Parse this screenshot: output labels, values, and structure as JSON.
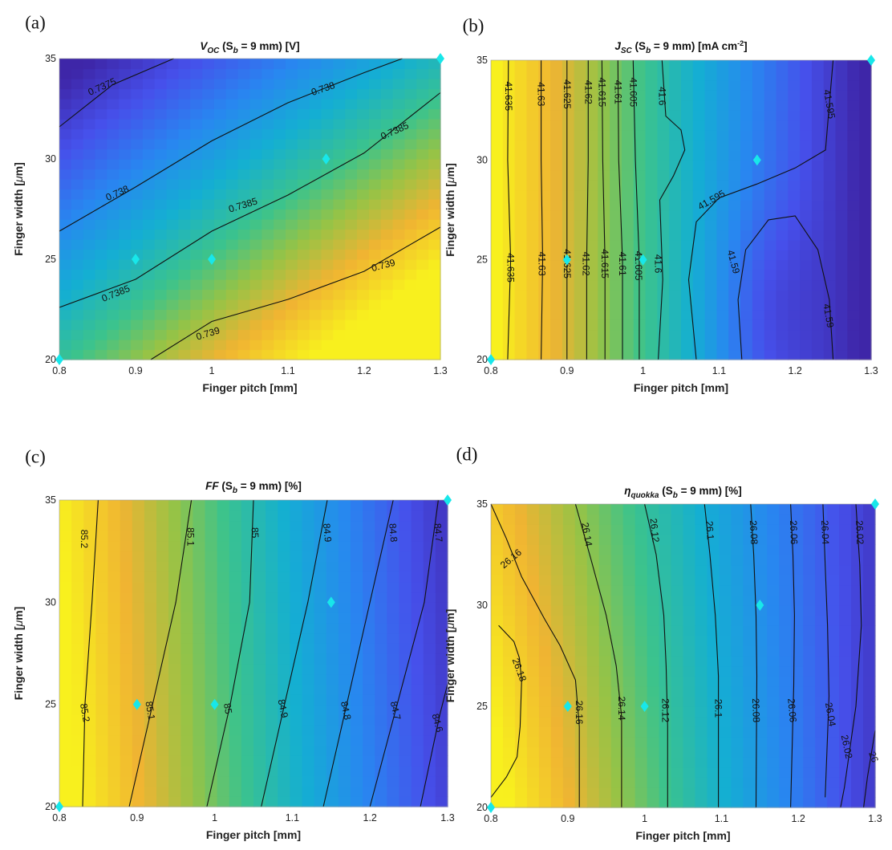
{
  "figure": {
    "panels": [
      {
        "letter": "(a)",
        "title_main": "V",
        "title_sub": "OC",
        "title_rest": " (S",
        "title_sub2": "b",
        "title_end": " = 9 mm) [V]"
      },
      {
        "letter": "(b)",
        "title_main": "J",
        "title_sub": "SC",
        "title_rest": " (S",
        "title_sub2": "b",
        "title_end": " = 9 mm) [mA cm",
        "title_sup": "-2",
        "title_close": "]"
      },
      {
        "letter": "(c)",
        "title_main": "FF",
        "title_sub": "",
        "title_rest": " (S",
        "title_sub2": "b",
        "title_end": " = 9 mm) [%]"
      },
      {
        "letter": "(d)",
        "title_main": "η",
        "title_sub": "quokka",
        "title_rest": " (S",
        "title_sub2": "b",
        "title_end": " = 9 mm) [%]"
      }
    ],
    "xlabel": "Finger pitch [mm]",
    "ylabel_pre": "Finger width [",
    "ylabel_mu": "μ",
    "ylabel_post": "m]",
    "colors": {
      "marker": "#18e7ea",
      "contour": "#111111"
    }
  },
  "chart_data": [
    {
      "type": "heatmap",
      "panel": "a",
      "title": "V_OC (S_b = 9 mm) [V]",
      "xlabel": "Finger pitch [mm]",
      "ylabel": "Finger width [μm]",
      "x_ticks": [
        "0.8",
        "0.9",
        "1",
        "1.1",
        "1.2",
        "1.3"
      ],
      "y_ticks": [
        "20",
        "25",
        "30",
        "35"
      ],
      "xlim": [
        0.8,
        1.3
      ],
      "ylim": [
        20,
        35
      ],
      "contour_levels": [
        "0.7375",
        "0.738",
        "0.7385",
        "0.739"
      ],
      "contour_labels": [
        {
          "text": "0.7375",
          "x": 0.856,
          "y": 33.6,
          "angle": -24
        },
        {
          "text": "0.738",
          "x": 1.146,
          "y": 33.5,
          "angle": -19
        },
        {
          "text": "0.738",
          "x": 0.876,
          "y": 28.3,
          "angle": -24
        },
        {
          "text": "0.7385",
          "x": 1.24,
          "y": 31.4,
          "angle": -24
        },
        {
          "text": "0.7385",
          "x": 1.041,
          "y": 27.7,
          "angle": -17
        },
        {
          "text": "0.7385",
          "x": 0.874,
          "y": 23.3,
          "angle": -22
        },
        {
          "text": "0.739",
          "x": 1.225,
          "y": 24.7,
          "angle": -15
        },
        {
          "text": "0.739",
          "x": 0.995,
          "y": 21.3,
          "angle": -17
        }
      ],
      "markers": [
        {
          "x": 0.8,
          "y": 20
        },
        {
          "x": 0.9,
          "y": 25
        },
        {
          "x": 1.0,
          "y": 25
        },
        {
          "x": 1.15,
          "y": 30
        },
        {
          "x": 1.3,
          "y": 35
        }
      ],
      "color_range": {
        "low": "#3a40d8",
        "high": "#f8f22a"
      }
    },
    {
      "type": "heatmap",
      "panel": "b",
      "title": "J_SC (S_b = 9 mm) [mA cm^-2]",
      "xlabel": "Finger pitch [mm]",
      "ylabel": "Finger width [μm]",
      "x_ticks": [
        "0.8",
        "0.9",
        "1",
        "1.1",
        "1.2",
        "1.3"
      ],
      "y_ticks": [
        "20",
        "25",
        "30",
        "35"
      ],
      "xlim": [
        0.8,
        1.3
      ],
      "ylim": [
        20,
        35
      ],
      "contour_levels": [
        "41.635",
        "41.63",
        "41.625",
        "41.62",
        "41.615",
        "41.61",
        "41.605",
        "41.6",
        "41.595",
        "41.59"
      ],
      "contour_labels": [
        {
          "text": "41.635",
          "x": 0.823,
          "y": 33.2,
          "angle": 90
        },
        {
          "text": "41.635",
          "x": 0.826,
          "y": 24.6,
          "angle": 90
        },
        {
          "text": "41.63",
          "x": 0.866,
          "y": 33.3,
          "angle": 90
        },
        {
          "text": "41.63",
          "x": 0.867,
          "y": 24.8,
          "angle": 90
        },
        {
          "text": "41.625",
          "x": 0.9,
          "y": 33.3,
          "angle": 90
        },
        {
          "text": "41.625",
          "x": 0.9,
          "y": 24.8,
          "angle": 90
        },
        {
          "text": "41.62",
          "x": 0.928,
          "y": 33.4,
          "angle": 90
        },
        {
          "text": "41.62",
          "x": 0.925,
          "y": 24.8,
          "angle": 90
        },
        {
          "text": "41.615",
          "x": 0.946,
          "y": 33.4,
          "angle": 90
        },
        {
          "text": "41.615",
          "x": 0.95,
          "y": 24.8,
          "angle": 90
        },
        {
          "text": "41.61",
          "x": 0.967,
          "y": 33.4,
          "angle": 90
        },
        {
          "text": "41.61",
          "x": 0.973,
          "y": 24.8,
          "angle": 90
        },
        {
          "text": "41.605",
          "x": 0.987,
          "y": 33.4,
          "angle": 90
        },
        {
          "text": "41.605",
          "x": 0.994,
          "y": 24.7,
          "angle": 90
        },
        {
          "text": "41.6",
          "x": 1.025,
          "y": 33.2,
          "angle": 90
        },
        {
          "text": "41.6",
          "x": 1.02,
          "y": 24.8,
          "angle": 90
        },
        {
          "text": "41.595",
          "x": 1.245,
          "y": 32.8,
          "angle": 80
        },
        {
          "text": "41.595",
          "x": 1.09,
          "y": 28.0,
          "angle": -30
        },
        {
          "text": "41.59",
          "x": 1.119,
          "y": 24.9,
          "angle": 75
        },
        {
          "text": "41.59",
          "x": 1.244,
          "y": 22.2,
          "angle": 80
        }
      ],
      "markers": [
        {
          "x": 0.8,
          "y": 20
        },
        {
          "x": 0.9,
          "y": 25
        },
        {
          "x": 1.0,
          "y": 25
        },
        {
          "x": 1.15,
          "y": 30
        },
        {
          "x": 1.3,
          "y": 35
        }
      ],
      "color_range": {
        "low": "#3a36c8",
        "high": "#f8e02a"
      }
    },
    {
      "type": "heatmap",
      "panel": "c",
      "title": "FF (S_b = 9 mm) [%]",
      "xlabel": "Finger pitch [mm]",
      "ylabel": "Finger width [μm]",
      "x_ticks": [
        "0.8",
        "0.9",
        "1",
        "1.1",
        "1.2",
        "1.3"
      ],
      "y_ticks": [
        "20",
        "25",
        "30",
        "35"
      ],
      "xlim": [
        0.8,
        1.3
      ],
      "ylim": [
        20,
        35
      ],
      "contour_levels": [
        "85.2",
        "85.1",
        "85",
        "84.9",
        "84.8",
        "84.7",
        "84.6"
      ],
      "contour_labels": [
        {
          "text": "85.2",
          "x": 0.832,
          "y": 33.1,
          "angle": 90
        },
        {
          "text": "85.2",
          "x": 0.833,
          "y": 24.6,
          "angle": 80
        },
        {
          "text": "85.1",
          "x": 0.969,
          "y": 33.2,
          "angle": 90
        },
        {
          "text": "85.1",
          "x": 0.917,
          "y": 24.7,
          "angle": 80
        },
        {
          "text": "85",
          "x": 1.052,
          "y": 33.4,
          "angle": 87
        },
        {
          "text": "85",
          "x": 1.017,
          "y": 24.8,
          "angle": 80
        },
        {
          "text": "84.9",
          "x": 1.145,
          "y": 33.4,
          "angle": 85
        },
        {
          "text": "84.9",
          "x": 1.088,
          "y": 24.8,
          "angle": 78
        },
        {
          "text": "84.8",
          "x": 1.23,
          "y": 33.4,
          "angle": 85
        },
        {
          "text": "84.8",
          "x": 1.169,
          "y": 24.7,
          "angle": 78
        },
        {
          "text": "84.7",
          "x": 1.288,
          "y": 33.4,
          "angle": 85
        },
        {
          "text": "84.7",
          "x": 1.233,
          "y": 24.7,
          "angle": 78
        },
        {
          "text": "84.6",
          "x": 1.287,
          "y": 24.1,
          "angle": 75
        }
      ],
      "markers": [
        {
          "x": 0.8,
          "y": 20
        },
        {
          "x": 0.9,
          "y": 25
        },
        {
          "x": 1.0,
          "y": 25
        },
        {
          "x": 1.15,
          "y": 30
        },
        {
          "x": 1.3,
          "y": 35
        }
      ],
      "color_range": {
        "low": "#3a36c8",
        "high": "#f8f02a"
      }
    },
    {
      "type": "heatmap",
      "panel": "d",
      "title": "η_quokka (S_b = 9 mm) [%]",
      "xlabel": "Finger pitch [mm]",
      "ylabel": "Finger width [μm]",
      "x_ticks": [
        "0.8",
        "0.9",
        "1",
        "1.1",
        "1.2",
        "1.3"
      ],
      "y_ticks": [
        "20",
        "25",
        "30",
        "35"
      ],
      "xlim": [
        0.8,
        1.3
      ],
      "ylim": [
        20,
        35
      ],
      "contour_levels": [
        "26.18",
        "26.16",
        "26.14",
        "26.12",
        "26.1",
        "26.08",
        "26.06",
        "26.04",
        "26.02",
        "26"
      ],
      "contour_labels": [
        {
          "text": "26.16",
          "x": 0.826,
          "y": 32.3,
          "angle": -40
        },
        {
          "text": "26.18",
          "x": 0.837,
          "y": 26.8,
          "angle": 70
        },
        {
          "text": "26.14",
          "x": 0.925,
          "y": 33.5,
          "angle": 80
        },
        {
          "text": "26.12",
          "x": 1.013,
          "y": 33.7,
          "angle": 84
        },
        {
          "text": "26.1",
          "x": 1.085,
          "y": 33.7,
          "angle": 86
        },
        {
          "text": "26.08",
          "x": 1.142,
          "y": 33.6,
          "angle": 87
        },
        {
          "text": "26.06",
          "x": 1.194,
          "y": 33.6,
          "angle": 88
        },
        {
          "text": "26.04",
          "x": 1.235,
          "y": 33.6,
          "angle": 88
        },
        {
          "text": "26.02",
          "x": 1.28,
          "y": 33.6,
          "angle": 88
        },
        {
          "text": "26.16",
          "x": 0.915,
          "y": 24.7,
          "angle": 90
        },
        {
          "text": "26.14",
          "x": 0.97,
          "y": 24.9,
          "angle": 90
        },
        {
          "text": "26.12",
          "x": 1.027,
          "y": 24.8,
          "angle": 90
        },
        {
          "text": "26.1",
          "x": 1.096,
          "y": 24.9,
          "angle": 90
        },
        {
          "text": "26.08",
          "x": 1.145,
          "y": 24.8,
          "angle": 88
        },
        {
          "text": "26.06",
          "x": 1.192,
          "y": 24.8,
          "angle": 85
        },
        {
          "text": "26.04",
          "x": 1.242,
          "y": 24.6,
          "angle": 80
        },
        {
          "text": "26.02",
          "x": 1.263,
          "y": 23.0,
          "angle": 78
        },
        {
          "text": "26",
          "x": 1.298,
          "y": 22.5,
          "angle": 70
        }
      ],
      "markers": [
        {
          "x": 0.8,
          "y": 20
        },
        {
          "x": 0.9,
          "y": 25
        },
        {
          "x": 1.0,
          "y": 25
        },
        {
          "x": 1.15,
          "y": 30
        },
        {
          "x": 1.3,
          "y": 35
        }
      ],
      "color_range": {
        "low": "#3a36c8",
        "high": "#f8e82a"
      }
    }
  ]
}
